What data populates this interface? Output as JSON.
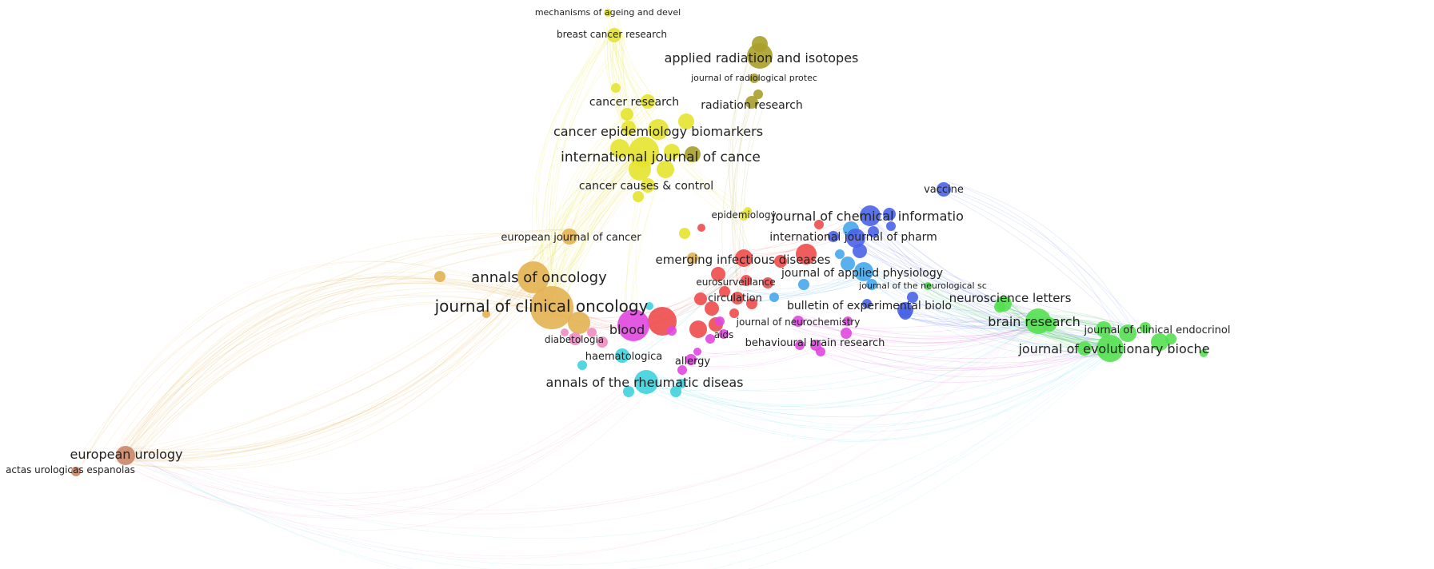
{
  "clusters": {
    "yellow": "#e6e32d",
    "olive": "#a8a02a",
    "orange": "#e3b152",
    "red": "#ee4b4b",
    "blue": "#4a63e6",
    "cyan": "#3fd1dd",
    "green": "#54e050",
    "magenta": "#e047e0",
    "pink": "#f08cc2",
    "brown": "#c98668",
    "sky": "#46a8ea"
  },
  "nodes": [
    {
      "id": "mechanisms",
      "label": "mechanisms of ageing and devel",
      "c": "yellow"
    },
    {
      "id": "breast",
      "label": "breast cancer research",
      "c": "yellow"
    },
    {
      "id": "applied_rad",
      "label": "applied radiation and isotopes",
      "c": "olive"
    },
    {
      "id": "radprotec",
      "label": "journal of radiological protec",
      "c": "olive"
    },
    {
      "id": "radres",
      "label": "radiation research",
      "c": "olive"
    },
    {
      "id": "cancer_res",
      "label": "cancer research",
      "c": "yellow"
    },
    {
      "id": "cebp",
      "label": "cancer epidemiology biomarkers",
      "c": "yellow"
    },
    {
      "id": "ijc",
      "label": "international journal of cance",
      "c": "yellow"
    },
    {
      "id": "ccc",
      "label": "cancer causes & control",
      "c": "yellow"
    },
    {
      "id": "epidemiology",
      "label": "epidemiology",
      "c": "yellow"
    },
    {
      "id": "ejc",
      "label": "european journal of cancer",
      "c": "orange"
    },
    {
      "id": "annonc",
      "label": "annals of oncology",
      "c": "orange"
    },
    {
      "id": "jco",
      "label": "journal of clinical oncology",
      "c": "orange"
    },
    {
      "id": "diabetologia",
      "label": "diabetologia",
      "c": "pink"
    },
    {
      "id": "blood",
      "label": "blood",
      "c": "magenta"
    },
    {
      "id": "haemat",
      "label": "haematologica",
      "c": "cyan"
    },
    {
      "id": "allergy",
      "label": "allergy",
      "c": "magenta"
    },
    {
      "id": "ard",
      "label": "annals of the rheumatic diseas",
      "c": "cyan"
    },
    {
      "id": "eid",
      "label": "emerging infectious diseases",
      "c": "red"
    },
    {
      "id": "euroserv",
      "label": "eurosurveillance",
      "c": "red"
    },
    {
      "id": "circulation",
      "label": "circulation",
      "c": "red"
    },
    {
      "id": "aids",
      "label": "aids",
      "c": "magenta"
    },
    {
      "id": "jneurochem",
      "label": "journal of neurochemistry",
      "c": "magenta"
    },
    {
      "id": "bbr",
      "label": "behavioural brain research",
      "c": "magenta"
    },
    {
      "id": "jci",
      "label": "journal of chemical informatio",
      "c": "blue"
    },
    {
      "id": "ijp",
      "label": "international journal of pharm",
      "c": "blue"
    },
    {
      "id": "vaccine",
      "label": "vaccine",
      "c": "blue"
    },
    {
      "id": "jap",
      "label": "journal of applied physiology",
      "c": "sky"
    },
    {
      "id": "bexpbio",
      "label": "bulletin of experimental biolo",
      "c": "blue"
    },
    {
      "id": "jneurosc",
      "label": "journal of the neurological sc",
      "c": "green"
    },
    {
      "id": "neurolett",
      "label": "neuroscience letters",
      "c": "green"
    },
    {
      "id": "brainres",
      "label": "brain research",
      "c": "green"
    },
    {
      "id": "jce",
      "label": "journal of clinical endocrinol",
      "c": "green"
    },
    {
      "id": "jevb",
      "label": "journal of evolutionary bioche",
      "c": "green"
    },
    {
      "id": "eururol",
      "label": "european urology",
      "c": "brown"
    },
    {
      "id": "actas",
      "label": "actas urologicas espanolas",
      "c": "brown"
    }
  ]
}
